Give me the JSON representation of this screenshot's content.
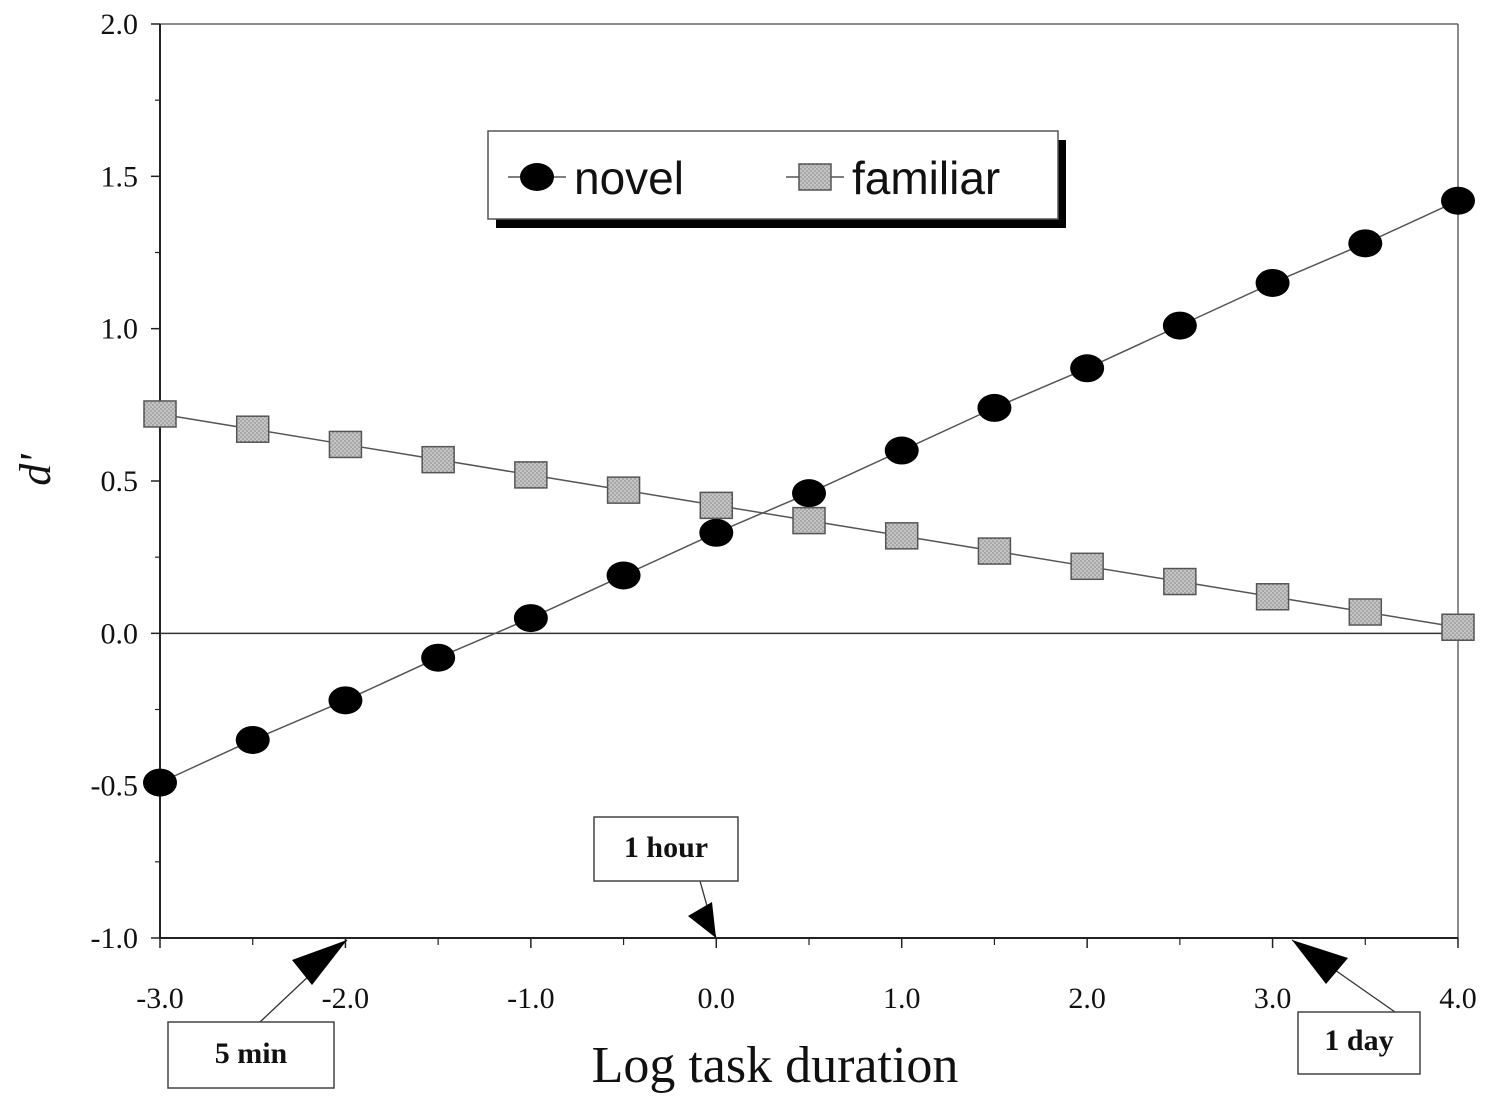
{
  "chart_data": {
    "type": "line",
    "xlabel": "Log task duration",
    "ylabel": "d'",
    "xlim": [
      -3.0,
      4.0
    ],
    "ylim": [
      -1.0,
      2.0
    ],
    "x_ticks": [
      "-3.0",
      "-2.0",
      "-1.0",
      "0.0",
      "1.0",
      "2.0",
      "3.0",
      "4.0"
    ],
    "y_ticks": [
      "-1.0",
      "-0.5",
      "0.0",
      "0.5",
      "1.0",
      "1.5",
      "2.0"
    ],
    "x": [
      -3.0,
      -2.5,
      -2.0,
      -1.5,
      -1.0,
      -0.5,
      0.0,
      0.5,
      1.0,
      1.5,
      2.0,
      2.5,
      3.0,
      3.5,
      4.0
    ],
    "series": [
      {
        "name": "novel",
        "marker": "circle",
        "values": [
          -0.49,
          -0.35,
          -0.22,
          -0.08,
          0.05,
          0.19,
          0.33,
          0.46,
          0.6,
          0.74,
          0.87,
          1.01,
          1.15,
          1.28,
          1.42
        ]
      },
      {
        "name": "familiar",
        "marker": "square",
        "values": [
          0.72,
          0.67,
          0.62,
          0.57,
          0.52,
          0.47,
          0.42,
          0.37,
          0.32,
          0.27,
          0.22,
          0.17,
          0.12,
          0.07,
          0.02
        ]
      }
    ],
    "reference_line_y": 0.0,
    "legend_position": "top-center",
    "grid": false,
    "annotations": [
      {
        "label": "5 min",
        "x": -2.0
      },
      {
        "label": "1 hour",
        "x": 0.0
      },
      {
        "label": "1 day",
        "x": 3.16
      }
    ],
    "colors": {
      "novel": "#000000",
      "familiar": "#b8b8b8",
      "line": "#555555"
    }
  }
}
